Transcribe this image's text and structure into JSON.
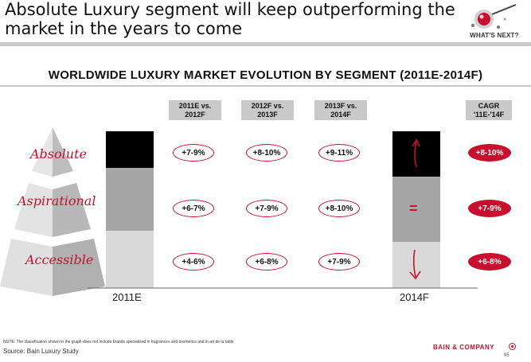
{
  "slide": {
    "title": "Absolute Luxury segment will keep outperforming the market in the years to come",
    "logo_text": "WHAT'S NEXT?"
  },
  "chart_title": "WORLDWIDE LUXURY MARKET EVOLUTION BY SEGMENT (2011E-2014F)",
  "segments": [
    "Absolute",
    "Aspirational",
    "Accessible"
  ],
  "column_headers": [
    [
      "2011E vs.",
      "2012F"
    ],
    [
      "2012F vs.",
      "2013F"
    ],
    [
      "2013F vs.",
      "2014F"
    ],
    [
      "CAGR",
      "'11E-'14F"
    ]
  ],
  "chart_data": {
    "type": "table",
    "title": "WORLDWIDE LUXURY MARKET EVOLUTION BY SEGMENT (2011E-2014F)",
    "bars": [
      {
        "name": "2011E",
        "segments": [
          {
            "segment": "Absolute",
            "color": "#000000"
          },
          {
            "segment": "Aspirational",
            "color": "#a6a6a6"
          },
          {
            "segment": "Accessible",
            "color": "#d9d9d9"
          }
        ]
      },
      {
        "name": "2014F",
        "segments": [
          {
            "segment": "Absolute",
            "color": "#000000",
            "trend": "up"
          },
          {
            "segment": "Aspirational",
            "color": "#a6a6a6",
            "trend": "="
          },
          {
            "segment": "Accessible",
            "color": "#d9d9d9",
            "trend": "down"
          }
        ]
      }
    ],
    "growth_rows": [
      {
        "segment": "Absolute",
        "values": [
          "+7-9%",
          "+8-10%",
          "+9-11%"
        ],
        "cagr": "+8-10%"
      },
      {
        "segment": "Aspirational",
        "values": [
          "+6-7%",
          "+7-9%",
          "+8-10%"
        ],
        "cagr": "+7-9%"
      },
      {
        "segment": "Accessible",
        "values": [
          "+4-6%",
          "+6-8%",
          "+7-9%"
        ],
        "cagr": "+6-8%"
      }
    ],
    "trend_labels": {
      "aspirational": "="
    }
  },
  "footer": {
    "note": "NOTE: The classification shown in the graph does not include brands specialized in fragrances and cosmetics and in art de la table",
    "source": "Source: Bain Luxury Study",
    "company": "BAIN & COMPANY",
    "page": "95"
  },
  "colors": {
    "accent": "#c8102e",
    "absolute": "#000000",
    "aspirational": "#a6a6a6",
    "accessible": "#d9d9d9"
  }
}
